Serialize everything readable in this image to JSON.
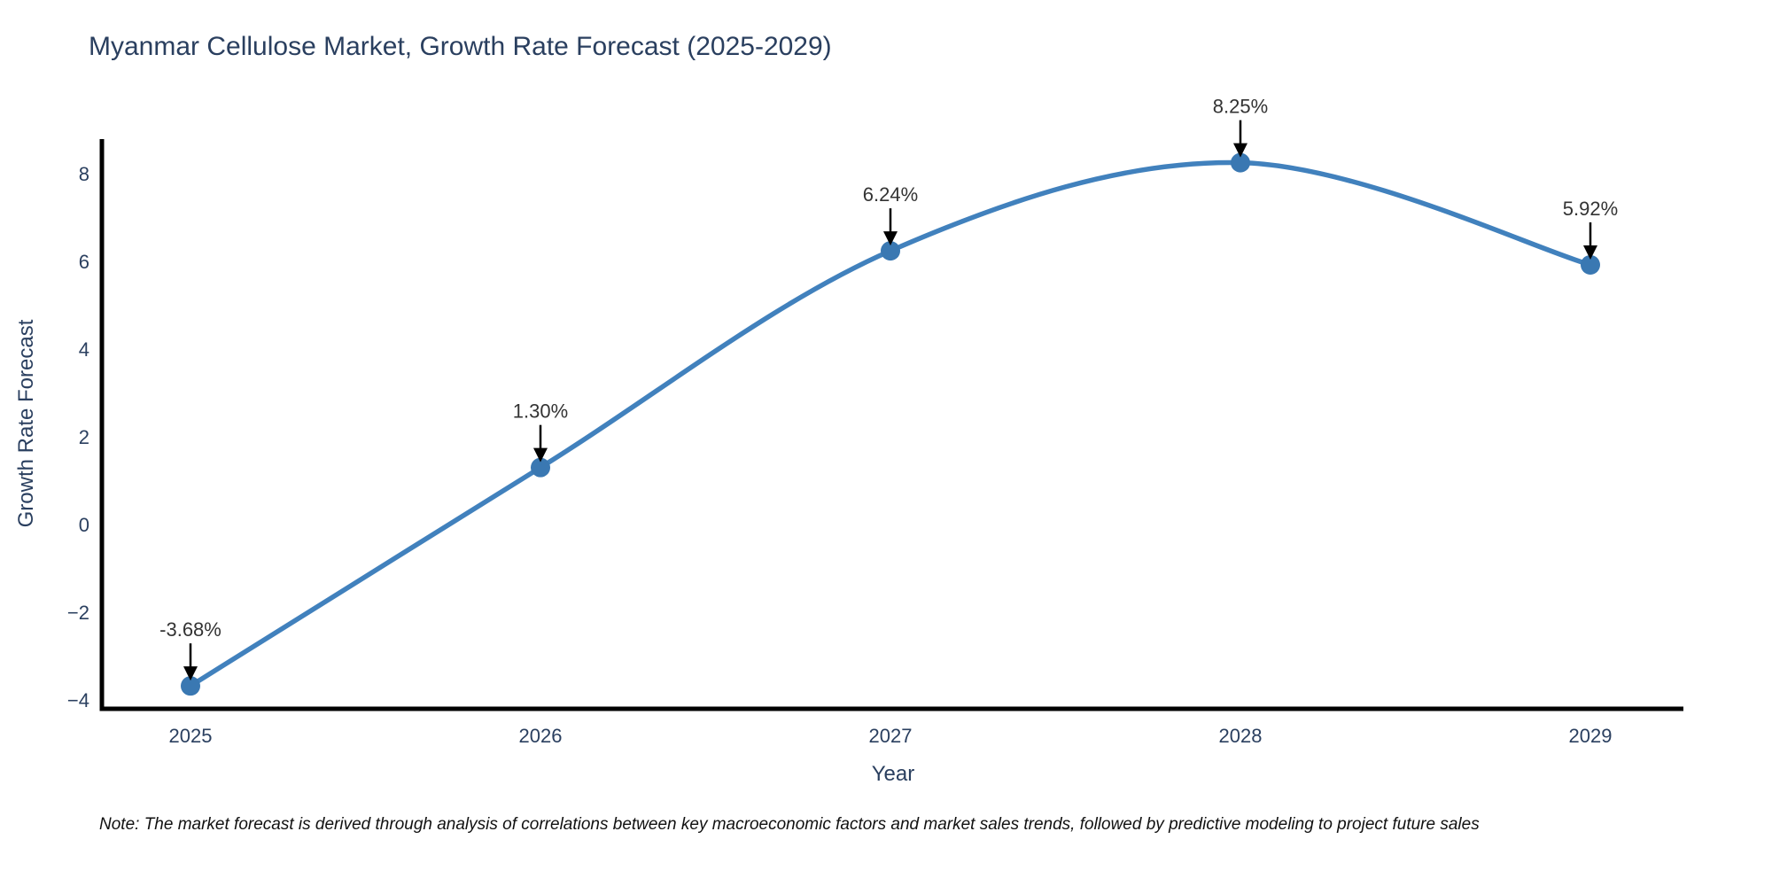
{
  "note": "Note: The market forecast is derived through analysis of correlations between key macroeconomic factors and market sales trends, followed by predictive modeling to project future sales",
  "chart_data": {
    "type": "line",
    "title": "Myanmar Cellulose Market, Growth Rate Forecast (2025-2029)",
    "xlabel": "Year",
    "ylabel": "Growth Rate Forecast",
    "x": [
      2025,
      2026,
      2027,
      2028,
      2029
    ],
    "categories": [
      "2025",
      "2026",
      "2027",
      "2028",
      "2029"
    ],
    "series": [
      {
        "name": "Growth Rate Forecast",
        "values": [
          -3.68,
          1.3,
          6.24,
          8.25,
          5.92
        ]
      }
    ],
    "point_labels": [
      "-3.68%",
      "1.30%",
      "6.24%",
      "8.25%",
      "5.92%"
    ],
    "yticks": [
      8,
      6,
      4,
      2,
      0,
      -2,
      -4
    ],
    "ytick_labels": [
      "8",
      "6",
      "4",
      "2",
      "0",
      "−2",
      "−4"
    ],
    "ylim": [
      -4.24,
      8.79
    ],
    "line_shape": "spline",
    "grid": false,
    "legend": "none",
    "annotations_style": "value labels with downward arrows above each point",
    "colors": {
      "line": "#4181bd",
      "marker": "#3a78b2",
      "axis": "#000000",
      "tick_text": "#2a3f5f",
      "title_text": "#2a3f5f",
      "annotation_text": "#333333",
      "arrow": "#000000",
      "background": "#ffffff"
    }
  }
}
